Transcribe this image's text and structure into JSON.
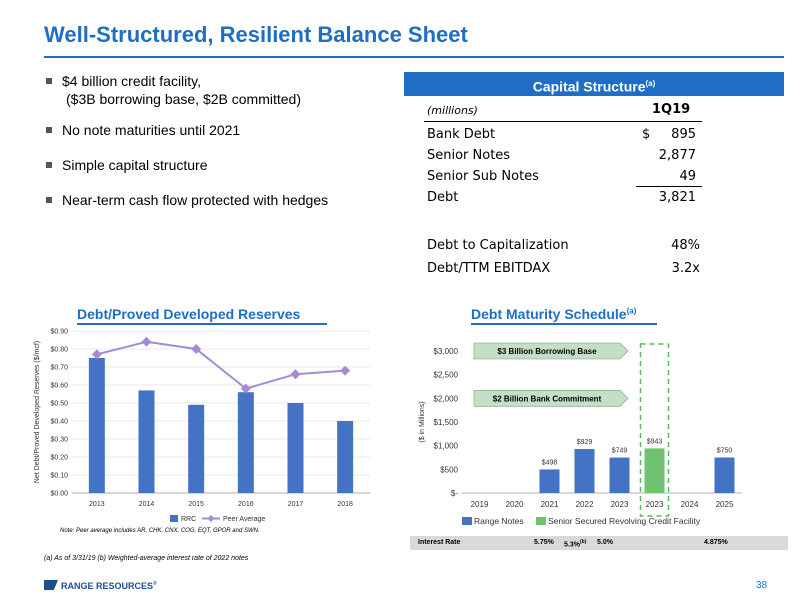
{
  "page": {
    "title": "Well-Structured, Resilient Balance Sheet",
    "page_number": "38",
    "footnote": "(a) As of 3/31/19 (b) Weighted-average interest rate of 2022 notes",
    "logo_text": "RANGE RESOURCES",
    "logo_mark": "®"
  },
  "bullets": [
    {
      "line1": "$4 billion credit facility,",
      "line2": "($3B borrowing base, $2B committed)"
    },
    {
      "line1": "No note maturities until 2021",
      "line2": ""
    },
    {
      "line1": "Simple capital structure",
      "line2": ""
    },
    {
      "line1": "Near-term cash flow protected with hedges",
      "line2": ""
    }
  ],
  "capital_structure": {
    "title": "Capital Structure",
    "title_sup": "(a)",
    "unit_label": "(millions)",
    "period": "1Q19",
    "rows": [
      {
        "label": "Bank Debt",
        "prefix": "$",
        "value": "895"
      },
      {
        "label": "Senior Notes",
        "prefix": "",
        "value": "2,877"
      },
      {
        "label": "Senior Sub Notes",
        "prefix": "",
        "value": "49"
      },
      {
        "label": "Debt",
        "prefix": "",
        "value": "3,821"
      }
    ],
    "ratios": [
      {
        "label": "Debt to Capitalization",
        "value": "48%"
      },
      {
        "label": "Debt/TTM EBITDAX",
        "value": "3.2x"
      }
    ]
  },
  "chart_data": [
    {
      "type": "bar",
      "title": "Debt/Proved Developed Reserves",
      "ylabel": "Net Debt/Proved Developed Reserves ($/mcf)",
      "xlabel": "",
      "categories": [
        "2013",
        "2014",
        "2015",
        "2016",
        "2017",
        "2018"
      ],
      "series": [
        {
          "name": "RRC",
          "kind": "bar",
          "color": "#4472c4",
          "values": [
            0.75,
            0.57,
            0.49,
            0.56,
            0.5,
            0.4
          ]
        },
        {
          "name": "Peer Average",
          "kind": "line",
          "color": "#a58bd6",
          "values": [
            0.77,
            0.84,
            0.8,
            0.58,
            0.66,
            0.68
          ]
        }
      ],
      "ylim": [
        0,
        0.9
      ],
      "yticks": [
        "$0.00",
        "$0.10",
        "$0.20",
        "$0.30",
        "$0.40",
        "$0.50",
        "$0.60",
        "$0.70",
        "$0.80",
        "$0.90"
      ],
      "note": "Note: Peer average includes AR, CHK, CNX, COG, EQT, GPOR and SWN.",
      "legend": "bottom"
    },
    {
      "type": "bar",
      "title": "Debt Maturity Schedule",
      "title_sup": "(a)",
      "ylabel": "($ in Millions)",
      "xlabel": "",
      "categories": [
        "2019",
        "2020",
        "2021",
        "2022",
        "2023",
        "2023",
        "2024",
        "2025"
      ],
      "series": [
        {
          "name": "Range Notes",
          "color": "#4472c4",
          "values": [
            0,
            0,
            498,
            929,
            749,
            0,
            0,
            750
          ]
        },
        {
          "name": "Senior Secured Revolving Credit Facility",
          "color": "#70c172",
          "values": [
            0,
            0,
            0,
            0,
            0,
            943,
            0,
            0
          ]
        }
      ],
      "data_labels": [
        "",
        "",
        "$498",
        "$929",
        "$749",
        "$943",
        "",
        "$750"
      ],
      "ylim": [
        0,
        3000
      ],
      "yticks": [
        "$-",
        "$500",
        "$1,000",
        "$1,500",
        "$2,000",
        "$2,500",
        "$3,000"
      ],
      "annotations": [
        {
          "text": "$3 Billion Borrowing Base",
          "y": 3000
        },
        {
          "text": "$2 Billion Bank Commitment",
          "y": 2000
        }
      ],
      "legend": "bottom",
      "interest_rate": {
        "label": "Interest Rate",
        "values": [
          {
            "category": "2021",
            "text": "5.75%",
            "sup": ""
          },
          {
            "category": "2022",
            "text": "5.3%",
            "sup": "(b)"
          },
          {
            "category": "2023",
            "text": "5.0%",
            "sup": ""
          },
          {
            "category": "2025",
            "text": "4.875%",
            "sup": ""
          }
        ]
      }
    }
  ]
}
